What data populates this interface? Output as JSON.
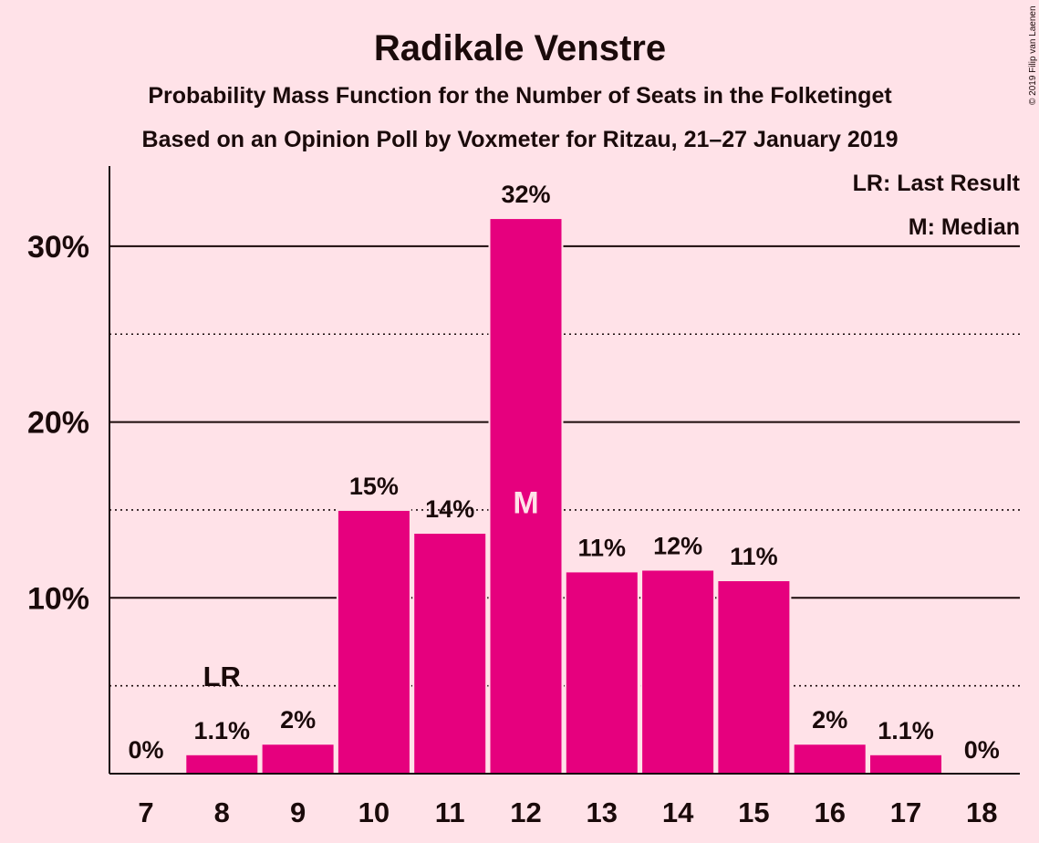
{
  "colors": {
    "background": "#FFE2E8",
    "bar": "#E6007E",
    "text": "#1a0a0a"
  },
  "chart_data": {
    "type": "bar",
    "title": "Radikale Venstre",
    "subtitles": [
      "Probability Mass Function for the Number of Seats in the Folketinget",
      "Based on an Opinion Poll by Voxmeter for Ritzau, 21–27 January 2019"
    ],
    "copyright": "© 2019 Filip van Laenen",
    "categories": [
      "7",
      "8",
      "9",
      "10",
      "11",
      "12",
      "13",
      "14",
      "15",
      "16",
      "17",
      "18"
    ],
    "values": [
      0,
      1.1,
      1.7,
      15.0,
      13.7,
      31.6,
      11.5,
      11.6,
      11.0,
      1.7,
      1.1,
      0
    ],
    "value_labels": [
      "0%",
      "1.1%",
      "2%",
      "15%",
      "14%",
      "32%",
      "11%",
      "12%",
      "11%",
      "2%",
      "1.1%",
      "0%"
    ],
    "ylim": [
      0,
      34
    ],
    "yticks": [
      {
        "value": 10,
        "label": "10%"
      },
      {
        "value": 20,
        "label": "20%"
      },
      {
        "value": 30,
        "label": "30%"
      }
    ],
    "minor_gridlines": [
      5,
      15,
      25
    ],
    "last_result": {
      "category": "8",
      "label": "LR"
    },
    "median": {
      "category": "12",
      "label": "M"
    },
    "legend": [
      "LR: Last Result",
      "M: Median"
    ],
    "legend_position": "top-right"
  }
}
